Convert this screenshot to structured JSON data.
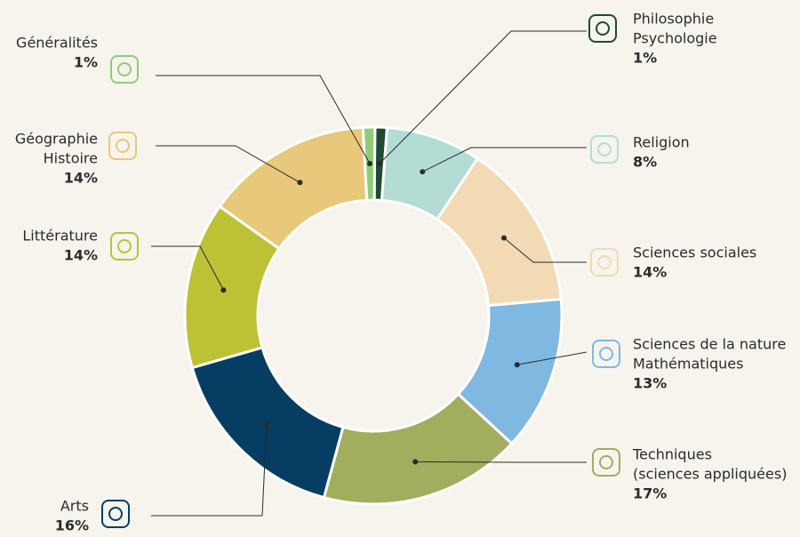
{
  "chart_data": {
    "type": "donut",
    "categories": [
      [
        "Philosophie",
        "Psychologie"
      ],
      [
        "Religion"
      ],
      [
        "Sciences sociales"
      ],
      [
        "Sciences de la nature",
        "Mathématiques"
      ],
      [
        "Techniques",
        "(sciences appliquées)"
      ],
      [
        "Arts"
      ],
      [
        "Littérature"
      ],
      [
        "Géographie",
        "Histoire"
      ],
      [
        "Généralités"
      ]
    ],
    "values": [
      1,
      8,
      14,
      13,
      17,
      16,
      14,
      14,
      1
    ],
    "value_labels": [
      "1%",
      "8%",
      "14%",
      "13%",
      "17%",
      "16%",
      "14%",
      "14%",
      "1%"
    ],
    "colors": [
      "#1f4a33",
      "#b3ddd4",
      "#f2dab5",
      "#7fb8e0",
      "#a2ad5e",
      "#063d63",
      "#bdc234",
      "#e8c87a",
      "#8fcc7a"
    ]
  }
}
